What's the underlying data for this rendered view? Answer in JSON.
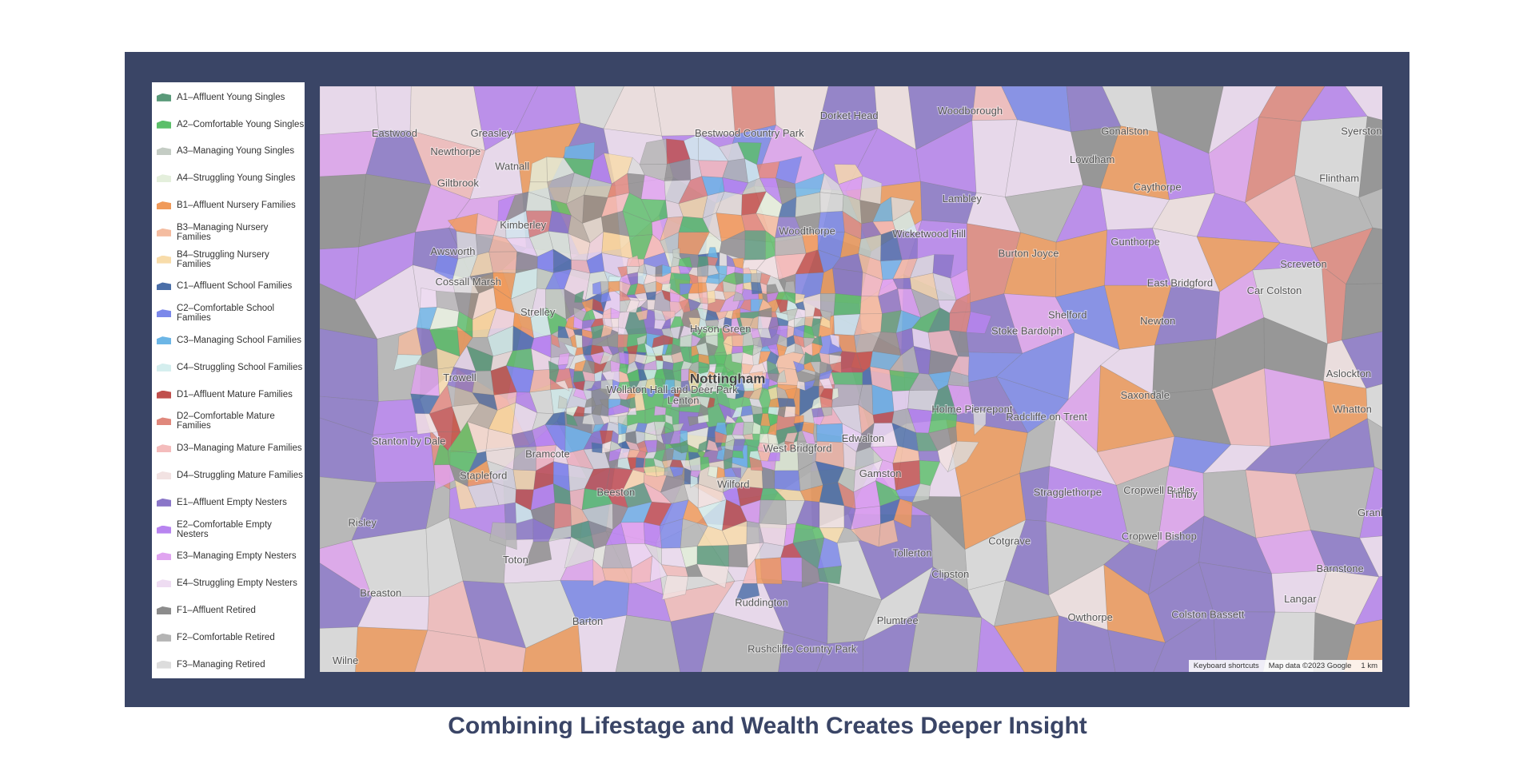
{
  "caption": "Combining Lifestage and Wealth Creates Deeper Insight",
  "legend": [
    {
      "label": "A1–Affluent Young Singles",
      "color": "#5a9a7a"
    },
    {
      "label": "A2–Comfortable Young Singles",
      "color": "#5cbf6a"
    },
    {
      "label": "A3–Managing Young Singles",
      "color": "#c4ccc4"
    },
    {
      "label": "A4–Struggling Young Singles",
      "color": "#e4efdc"
    },
    {
      "label": "B1–Affluent Nursery Families",
      "color": "#f09a5a"
    },
    {
      "label": "B3–Managing Nursery Families",
      "color": "#f4bca0"
    },
    {
      "label": "B4–Struggling Nursery Families",
      "color": "#f8dcaa"
    },
    {
      "label": "C1–Affluent School Families",
      "color": "#4a6ea8"
    },
    {
      "label": "C2–Comfortable School Families",
      "color": "#7b88ea"
    },
    {
      "label": "C3–Managing School Families",
      "color": "#6cb6e6"
    },
    {
      "label": "C4–Struggling School Families",
      "color": "#d4eeee"
    },
    {
      "label": "D1–Affluent Mature Families",
      "color": "#c0504d"
    },
    {
      "label": "D2–Comfortable Mature Families",
      "color": "#e0887c"
    },
    {
      "label": "D3–Managing Mature Families",
      "color": "#f4bcbc"
    },
    {
      "label": "D4–Struggling Mature Families",
      "color": "#f2e2e2"
    },
    {
      "label": "E1–Affluent Empty Nesters",
      "color": "#8a76c8"
    },
    {
      "label": "E2–Comfortable Empty Nesters",
      "color": "#b884f0"
    },
    {
      "label": "E3–Managing Empty Nesters",
      "color": "#e0a4f0"
    },
    {
      "label": "E4–Struggling Empty Nesters",
      "color": "#eedcf2"
    },
    {
      "label": "F1–Affluent Retired",
      "color": "#8c8c8c"
    },
    {
      "label": "F2–Comfortable Retired",
      "color": "#b4b4b4"
    },
    {
      "label": "F3–Managing Retired",
      "color": "#dcdcdc"
    }
  ],
  "map": {
    "places": [
      "Nottingham",
      "Beeston",
      "West Bridgford",
      "Wilford",
      "Woodthorpe",
      "Bestwood Country Park",
      "Dorket Head",
      "Woodborough",
      "Gonalston",
      "Syerston",
      "Lowdham",
      "Caythorpe",
      "Flintham",
      "Lambley",
      "Gunthorpe",
      "Burton Joyce",
      "Wicketwood Hill",
      "East Bridgford",
      "Car Colston",
      "Screveton",
      "Newton",
      "Shelford",
      "Stoke Bardolph",
      "Holme Pierrepont",
      "Radcliffe on Trent",
      "Saxondale",
      "Aslockton",
      "Whatton",
      "Cropwell Butler",
      "Tithby",
      "Cropwell Bishop",
      "Granby",
      "Stragglethorpe",
      "Cotgrave",
      "Tollerton",
      "Clipston",
      "Barnstone",
      "Langar",
      "Owthorpe",
      "Colston Bassett",
      "Plumtree",
      "Ruddington",
      "Rushcliffe Country Park",
      "Barton",
      "Edwalton",
      "Gamston",
      "Greasley",
      "Watnall",
      "Kimberley",
      "Eastwood",
      "Newthorpe",
      "Giltbrook",
      "Awsworth",
      "Cossall Marsh",
      "Strelley",
      "Trowell",
      "Stanton by Dale",
      "Bramcote",
      "Stapleford",
      "Risley",
      "Toton",
      "Breaston",
      "Wollaton Hall and Deer Park",
      "Hyson Green",
      "Lenton",
      "Wilne"
    ],
    "attribution": [
      "Keyboard shortcuts",
      "Map data ©2023 Google",
      "1 km"
    ]
  }
}
